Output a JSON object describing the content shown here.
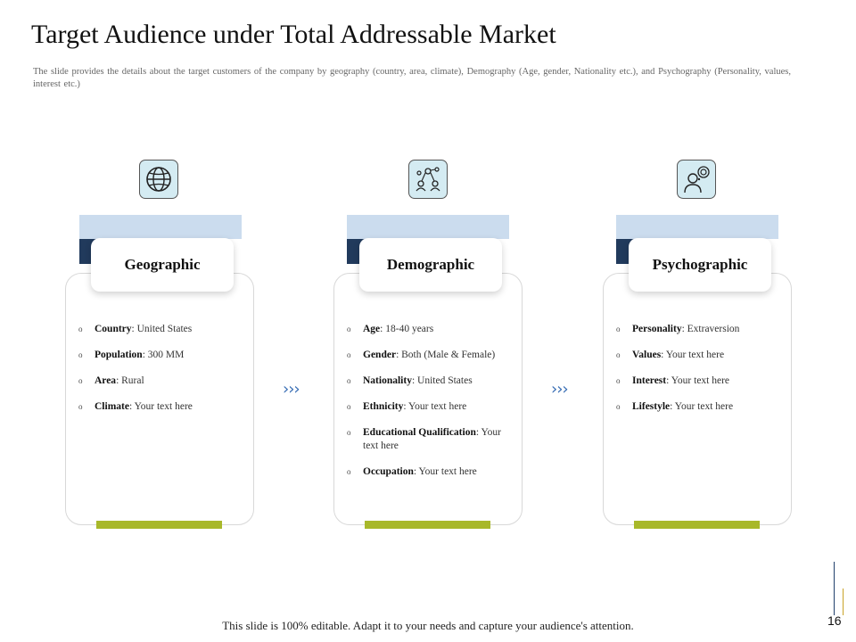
{
  "title": "Target Audience under Total Addressable Market",
  "subtitle": "The slide provides the details about the target customers of the company by geography (country, area, climate), Demography (Age, gender, Nationality etc.), and Psychography (Personality, values, interest etc.)",
  "columns": [
    {
      "heading": "Geographic",
      "icon": "globe-icon",
      "items": [
        {
          "label": "Country",
          "value": ": United States"
        },
        {
          "label": "Population",
          "value": ": 300 MM"
        },
        {
          "label": "Area",
          "value": ": Rural"
        },
        {
          "label": "Climate",
          "value": ": Your text here"
        }
      ]
    },
    {
      "heading": "Demographic",
      "icon": "people-network-icon",
      "items": [
        {
          "label": "Age",
          "value": ": 18-40 years"
        },
        {
          "label": "Gender",
          "value": ": Both (Male & Female)"
        },
        {
          "label": "Nationality",
          "value": ": United States"
        },
        {
          "label": "Ethnicity",
          "value": ": Your text here"
        },
        {
          "label": "Educational Qualification",
          "value": ": Your text here"
        },
        {
          "label": "Occupation",
          "value": ": Your text here"
        }
      ]
    },
    {
      "heading": "Psychographic",
      "icon": "person-thinking-icon",
      "items": [
        {
          "label": "Personality",
          "value": ": Extraversion"
        },
        {
          "label": "Values",
          "value": ": Your text here"
        },
        {
          "label": "Interest",
          "value": ": Your text here"
        },
        {
          "label": "Lifestyle",
          "value": ": Your text here"
        }
      ]
    }
  ],
  "chevron": "›››",
  "bullet": "o",
  "footer": "This slide is 100% editable. Adapt it to your needs and capture your audience's attention.",
  "page_number": "16",
  "colors": {
    "accent_bar": "#a8b82a",
    "band": "#cbdcee",
    "dark_block": "#213a5c",
    "icon_bg": "#d4ebf2",
    "chevron": "#3a6fb5"
  }
}
